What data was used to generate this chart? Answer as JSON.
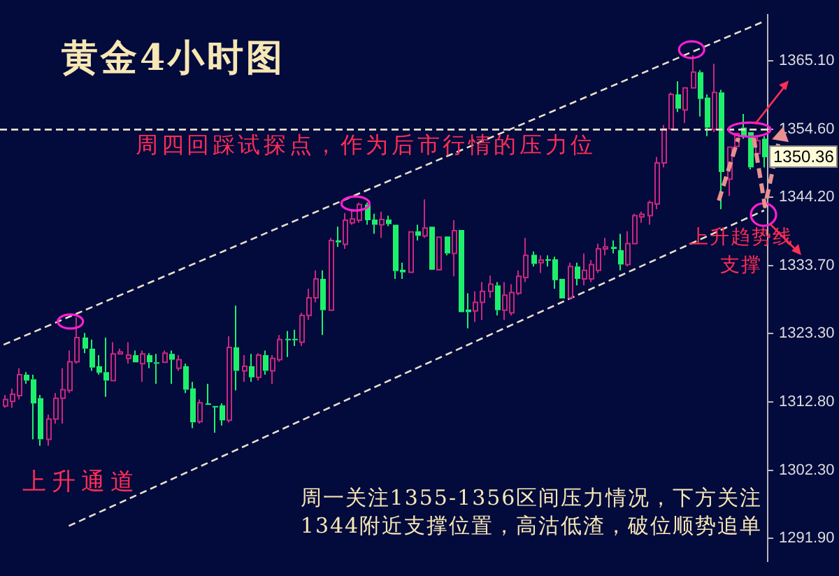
{
  "chart_data": {
    "type": "candlestick",
    "title": "黄金4小时图",
    "categories": [
      null,
      null,
      null,
      null,
      null,
      null,
      null,
      null,
      null,
      null,
      null,
      null,
      null,
      null,
      null,
      null,
      null,
      null,
      null,
      null,
      null,
      null,
      null,
      null,
      null,
      null,
      null,
      null,
      null,
      null,
      null,
      null,
      null,
      null,
      null,
      null,
      null,
      null,
      null,
      null,
      null,
      null,
      null,
      null,
      null,
      null,
      null,
      null,
      null,
      null,
      null,
      null,
      null,
      null,
      null,
      null,
      null,
      null,
      null,
      null,
      null,
      null,
      null,
      null,
      null,
      null,
      null,
      null,
      null,
      null,
      null,
      null,
      null,
      null,
      null,
      null,
      null,
      null,
      null,
      null,
      null,
      null,
      null,
      null,
      null,
      null,
      null,
      null,
      null,
      null,
      null,
      null,
      null,
      null,
      null,
      null,
      null,
      null,
      null,
      null,
      null,
      null,
      null,
      null,
      null,
      null
    ],
    "ohlc": [
      [
        1312.2,
        1313.9,
        1311.9,
        1313.2
      ],
      [
        1312.9,
        1314.9,
        1311.9,
        1314.0
      ],
      [
        1313.8,
        1318.0,
        1313.2,
        1317.0
      ],
      [
        1317.0,
        1317.4,
        1315.6,
        1316.1
      ],
      [
        1316.3,
        1317.0,
        1307.1,
        1312.6
      ],
      [
        1313.4,
        1313.9,
        1306.1,
        1307.1
      ],
      [
        1307.1,
        1310.9,
        1306.1,
        1310.2
      ],
      [
        1310.2,
        1314.2,
        1309.5,
        1313.4
      ],
      [
        1313.4,
        1318.0,
        1309.5,
        1314.7
      ],
      [
        1314.6,
        1320.7,
        1314.2,
        1319.0
      ],
      [
        1319.0,
        1325.8,
        1318.7,
        1322.7
      ],
      [
        1322.7,
        1323.4,
        1320.3,
        1321.0
      ],
      [
        1321.0,
        1322.4,
        1317.6,
        1318.1
      ],
      [
        1318.3,
        1320.0,
        1317.0,
        1317.3
      ],
      [
        1317.4,
        1322.7,
        1313.6,
        1316.1
      ],
      [
        1316.1,
        1322.0,
        1315.9,
        1320.2
      ],
      [
        1320.2,
        1321.0,
        1320.0,
        1320.5
      ],
      [
        1319.5,
        1322.0,
        1318.7,
        1320.0
      ],
      [
        1320.0,
        1320.7,
        1318.7,
        1318.9
      ],
      [
        1318.7,
        1320.7,
        1315.9,
        1320.2
      ],
      [
        1320.0,
        1320.3,
        1318.0,
        1318.9
      ],
      [
        1318.9,
        1320.2,
        1315.6,
        1318.7
      ],
      [
        1318.9,
        1320.7,
        1318.7,
        1320.3
      ],
      [
        1320.2,
        1320.7,
        1315.6,
        1319.3
      ],
      [
        1318.0,
        1320.0,
        1317.6,
        1319.3
      ],
      [
        1318.3,
        1318.7,
        1314.2,
        1314.7
      ],
      [
        1314.9,
        1315.9,
        1308.8,
        1309.7
      ],
      [
        1309.8,
        1313.2,
        1309.5,
        1312.7
      ],
      [
        1312.6,
        1315.6,
        1312.2,
        1312.4
      ],
      [
        1312.2,
        1312.2,
        1308.1,
        1312.0
      ],
      [
        1312.3,
        1312.6,
        1309.2,
        1310.0
      ],
      [
        1310.0,
        1322.9,
        1309.7,
        1321.2
      ],
      [
        1321.2,
        1327.6,
        1314.6,
        1317.6
      ],
      [
        1317.6,
        1320.0,
        1315.9,
        1318.3
      ],
      [
        1318.3,
        1320.2,
        1315.9,
        1316.6
      ],
      [
        1316.6,
        1320.3,
        1316.1,
        1320.0
      ],
      [
        1320.0,
        1320.7,
        1317.0,
        1317.6
      ],
      [
        1317.6,
        1320.0,
        1315.6,
        1319.5
      ],
      [
        1319.3,
        1323.1,
        1319.0,
        1322.4
      ],
      [
        1322.5,
        1323.7,
        1319.7,
        1322.3
      ],
      [
        1322.5,
        1323.9,
        1321.4,
        1322.3
      ],
      [
        1322.0,
        1326.5,
        1321.4,
        1326.1
      ],
      [
        1326.1,
        1330.2,
        1325.4,
        1328.8
      ],
      [
        1328.8,
        1333.0,
        1328.1,
        1331.7
      ],
      [
        1331.7,
        1333.0,
        1323.1,
        1326.9
      ],
      [
        1326.9,
        1338.0,
        1326.8,
        1337.6
      ],
      [
        1337.6,
        1339.7,
        1336.6,
        1337.3
      ],
      [
        1337.0,
        1341.8,
        1336.3,
        1340.7
      ],
      [
        1340.3,
        1342.4,
        1340.0,
        1340.9
      ],
      [
        1340.7,
        1343.4,
        1340.3,
        1343.1
      ],
      [
        1343.1,
        1343.4,
        1340.0,
        1340.7
      ],
      [
        1340.8,
        1341.7,
        1338.6,
        1340.0
      ],
      [
        1340.0,
        1342.0,
        1338.0,
        1340.8
      ],
      [
        1340.8,
        1341.4,
        1339.8,
        1340.1
      ],
      [
        1340.0,
        1340.2,
        1331.7,
        1332.9
      ],
      [
        1333.1,
        1334.2,
        1331.7,
        1332.7
      ],
      [
        1332.7,
        1339.0,
        1332.6,
        1338.9
      ],
      [
        1339.0,
        1340.0,
        1337.6,
        1338.3
      ],
      [
        1338.3,
        1343.9,
        1338.0,
        1339.5
      ],
      [
        1339.7,
        1339.8,
        1332.9,
        1333.1
      ],
      [
        1333.1,
        1338.3,
        1332.9,
        1338.1
      ],
      [
        1338.2,
        1338.4,
        1335.3,
        1335.6
      ],
      [
        1335.6,
        1340.7,
        1332.1,
        1339.1
      ],
      [
        1339.2,
        1339.3,
        1326.5,
        1326.6
      ],
      [
        1327.0,
        1329.5,
        1324.1,
        1326.6
      ],
      [
        1326.8,
        1329.8,
        1325.1,
        1328.1
      ],
      [
        1328.1,
        1331.2,
        1325.4,
        1329.8
      ],
      [
        1329.8,
        1332.2,
        1328.8,
        1330.9
      ],
      [
        1330.7,
        1331.2,
        1326.1,
        1326.9
      ],
      [
        1326.9,
        1331.2,
        1325.4,
        1329.2
      ],
      [
        1326.5,
        1330.9,
        1326.1,
        1329.6
      ],
      [
        1329.5,
        1333.0,
        1329.2,
        1332.1
      ],
      [
        1331.9,
        1338.0,
        1331.2,
        1335.3
      ],
      [
        1335.4,
        1335.9,
        1333.6,
        1334.0
      ],
      [
        1334.2,
        1335.3,
        1332.6,
        1334.6
      ],
      [
        1334.7,
        1335.3,
        1333.6,
        1334.5
      ],
      [
        1334.7,
        1335.1,
        1330.2,
        1331.5
      ],
      [
        1331.7,
        1331.9,
        1328.5,
        1328.7
      ],
      [
        1328.8,
        1334.2,
        1328.5,
        1333.6
      ],
      [
        1333.6,
        1334.2,
        1330.7,
        1331.7
      ],
      [
        1331.7,
        1335.6,
        1330.7,
        1333.0
      ],
      [
        1331.7,
        1334.6,
        1331.2,
        1333.9
      ],
      [
        1333.0,
        1337.1,
        1332.6,
        1336.3
      ],
      [
        1336.3,
        1338.0,
        1335.3,
        1336.6
      ],
      [
        1336.6,
        1337.6,
        1335.6,
        1336.3
      ],
      [
        1336.1,
        1338.6,
        1333.0,
        1333.9
      ],
      [
        1333.9,
        1339.0,
        1333.6,
        1337.1
      ],
      [
        1337.1,
        1341.7,
        1337.0,
        1341.4
      ],
      [
        1341.2,
        1342.0,
        1340.3,
        1341.6
      ],
      [
        1341.4,
        1343.7,
        1340.0,
        1343.4
      ],
      [
        1343.2,
        1350.4,
        1342.4,
        1349.5
      ],
      [
        1349.5,
        1355.3,
        1348.8,
        1354.7
      ],
      [
        1354.7,
        1360.3,
        1354.6,
        1360.0
      ],
      [
        1360.0,
        1362.0,
        1357.3,
        1357.8
      ],
      [
        1357.6,
        1361.2,
        1355.6,
        1361.0
      ],
      [
        1361.0,
        1366.0,
        1360.8,
        1363.4
      ],
      [
        1363.4,
        1363.7,
        1356.6,
        1359.3
      ],
      [
        1359.5,
        1360.0,
        1353.6,
        1354.9
      ],
      [
        1354.6,
        1364.7,
        1354.2,
        1360.3
      ],
      [
        1360.3,
        1360.7,
        1342.4,
        1348.1
      ],
      [
        1347.0,
        1352.0,
        1344.4,
        1351.9
      ],
      [
        1352.0,
        1354.2,
        1351.9,
        1354.0
      ],
      [
        1354.9,
        1357.0,
        1353.2,
        1353.6
      ],
      [
        1354.2,
        1354.4,
        1348.5,
        1348.8
      ],
      [
        1350.9,
        1353.6,
        1350.5,
        1352.9
      ],
      [
        1353.2,
        1353.6,
        1348.8,
        1350.36
      ]
    ],
    "colors": [
      "#c8287e",
      "#c8287e",
      "#c8287e",
      "#1ef06c",
      "#1ef06c",
      "#1ef06c",
      "#c8287e",
      "#c8287e",
      "#c8287e",
      "#c8287e",
      "#c8287e",
      "#1ef06c",
      "#1ef06c",
      "#1ef06c",
      "#1ef06c",
      "#c8287e",
      "#c8287e",
      "#c8287e",
      "#1ef06c",
      "#c8287e",
      "#1ef06c",
      "#1ef06c",
      "#c8287e",
      "#1ef06c",
      "#c8287e",
      "#1ef06c",
      "#1ef06c",
      "#c8287e",
      "#1ef06c",
      "#1ef06c",
      "#1ef06c",
      "#c8287e",
      "#1ef06c",
      "#c8287e",
      "#1ef06c",
      "#c8287e",
      "#1ef06c",
      "#c8287e",
      "#c8287e",
      "#1ef06c",
      "#1ef06c",
      "#c8287e",
      "#c8287e",
      "#c8287e",
      "#1ef06c",
      "#c8287e",
      "#1ef06c",
      "#c8287e",
      "#c8287e",
      "#c8287e",
      "#1ef06c",
      "#1ef06c",
      "#c8287e",
      "#1ef06c",
      "#1ef06c",
      "#1ef06c",
      "#c8287e",
      "#1ef06c",
      "#c8287e",
      "#1ef06c",
      "#c8287e",
      "#1ef06c",
      "#c8287e",
      "#1ef06c",
      "#1ef06c",
      "#c8287e",
      "#c8287e",
      "#c8287e",
      "#1ef06c",
      "#c8287e",
      "#c8287e",
      "#c8287e",
      "#c8287e",
      "#1ef06c",
      "#c8287e",
      "#1ef06c",
      "#1ef06c",
      "#1ef06c",
      "#c8287e",
      "#1ef06c",
      "#c8287e",
      "#c8287e",
      "#c8287e",
      "#c8287e",
      "#1ef06c",
      "#1ef06c",
      "#c8287e",
      "#c8287e",
      "#c8287e",
      "#c8287e",
      "#c8287e",
      "#c8287e",
      "#c8287e",
      "#1ef06c",
      "#c8287e",
      "#c8287e",
      "#1ef06c",
      "#1ef06c",
      "#c8287e",
      "#1ef06c",
      "#c8287e",
      "#c8287e",
      "#1ef06c",
      "#1ef06c",
      "#c8287e",
      "#1ef06c"
    ],
    "series": [
      {
        "type": "line",
        "color": "#e8e0c8",
        "line_style": "dashed",
        "values": [
          1321.6,
          null,
          null,
          null,
          null,
          null,
          null,
          null,
          null,
          null,
          null,
          null,
          null,
          null,
          null,
          null,
          null,
          null,
          null,
          null,
          null,
          null,
          null,
          null,
          null,
          null,
          null,
          null,
          null,
          null,
          null,
          null,
          null,
          null,
          null,
          null,
          null,
          null,
          null,
          null,
          null,
          null,
          null,
          null,
          null,
          null,
          null,
          null,
          null,
          null,
          null,
          null,
          null,
          null,
          null,
          null,
          null,
          null,
          null,
          null,
          null,
          null,
          null,
          null,
          null,
          null,
          null,
          null,
          null,
          null,
          null,
          null,
          null,
          null,
          null,
          null,
          null,
          null,
          null,
          null,
          null,
          null,
          null,
          null,
          null,
          null,
          null,
          null,
          null,
          null,
          null,
          null,
          null,
          null,
          null,
          null,
          null,
          null,
          null,
          null,
          null,
          null,
          null,
          null,
          null,
          1371.2
        ]
      },
      {
        "type": "line",
        "color": "#e8e0c8",
        "line_style": "dashed",
        "values": [
          null,
          null,
          null,
          null,
          null,
          null,
          null,
          null,
          null,
          1293.8,
          null,
          null,
          null,
          null,
          null,
          null,
          null,
          null,
          null,
          null,
          null,
          null,
          null,
          null,
          null,
          null,
          null,
          null,
          null,
          null,
          null,
          null,
          null,
          null,
          null,
          null,
          null,
          null,
          null,
          null,
          null,
          null,
          null,
          null,
          null,
          null,
          null,
          null,
          null,
          null,
          null,
          null,
          null,
          null,
          null,
          null,
          null,
          null,
          null,
          null,
          null,
          null,
          null,
          null,
          null,
          null,
          null,
          null,
          null,
          null,
          null,
          null,
          null,
          null,
          null,
          null,
          null,
          null,
          null,
          null,
          null,
          null,
          null,
          null,
          null,
          null,
          null,
          null,
          null,
          null,
          null,
          null,
          null,
          null,
          null,
          null,
          null,
          null,
          null,
          null,
          null,
          null,
          null,
          null,
          null,
          1342.2
        ]
      }
    ],
    "ref_lines": [
      {
        "axis": "y",
        "value": 1354.6,
        "color": "#e8e0c8",
        "line_style": "dashed"
      }
    ],
    "ylim": [
      1288.4,
      1372.2
    ],
    "yticks": [
      {
        "value": 1365.1,
        "label": "1365.10"
      },
      {
        "value": 1354.6,
        "label": "1354.60"
      },
      {
        "value": 1344.2,
        "label": "1344.20"
      },
      {
        "value": 1333.7,
        "label": "1333.70"
      },
      {
        "value": 1323.3,
        "label": "1323.30"
      },
      {
        "value": 1312.8,
        "label": "1312.80"
      },
      {
        "value": 1302.3,
        "label": "1302.30"
      },
      {
        "value": 1291.9,
        "label": "1291.90"
      }
    ],
    "tick_labels": "y",
    "annotations": [
      "周四回踩试探点，作为后市行情的压力位",
      "上升通道",
      "上升趋势线支撑",
      "周一关注1355-1356区间压力情况，下方关注1344附近支撑位置，高沽低渣，破位顺势追单",
      "1350.36"
    ]
  }
}
